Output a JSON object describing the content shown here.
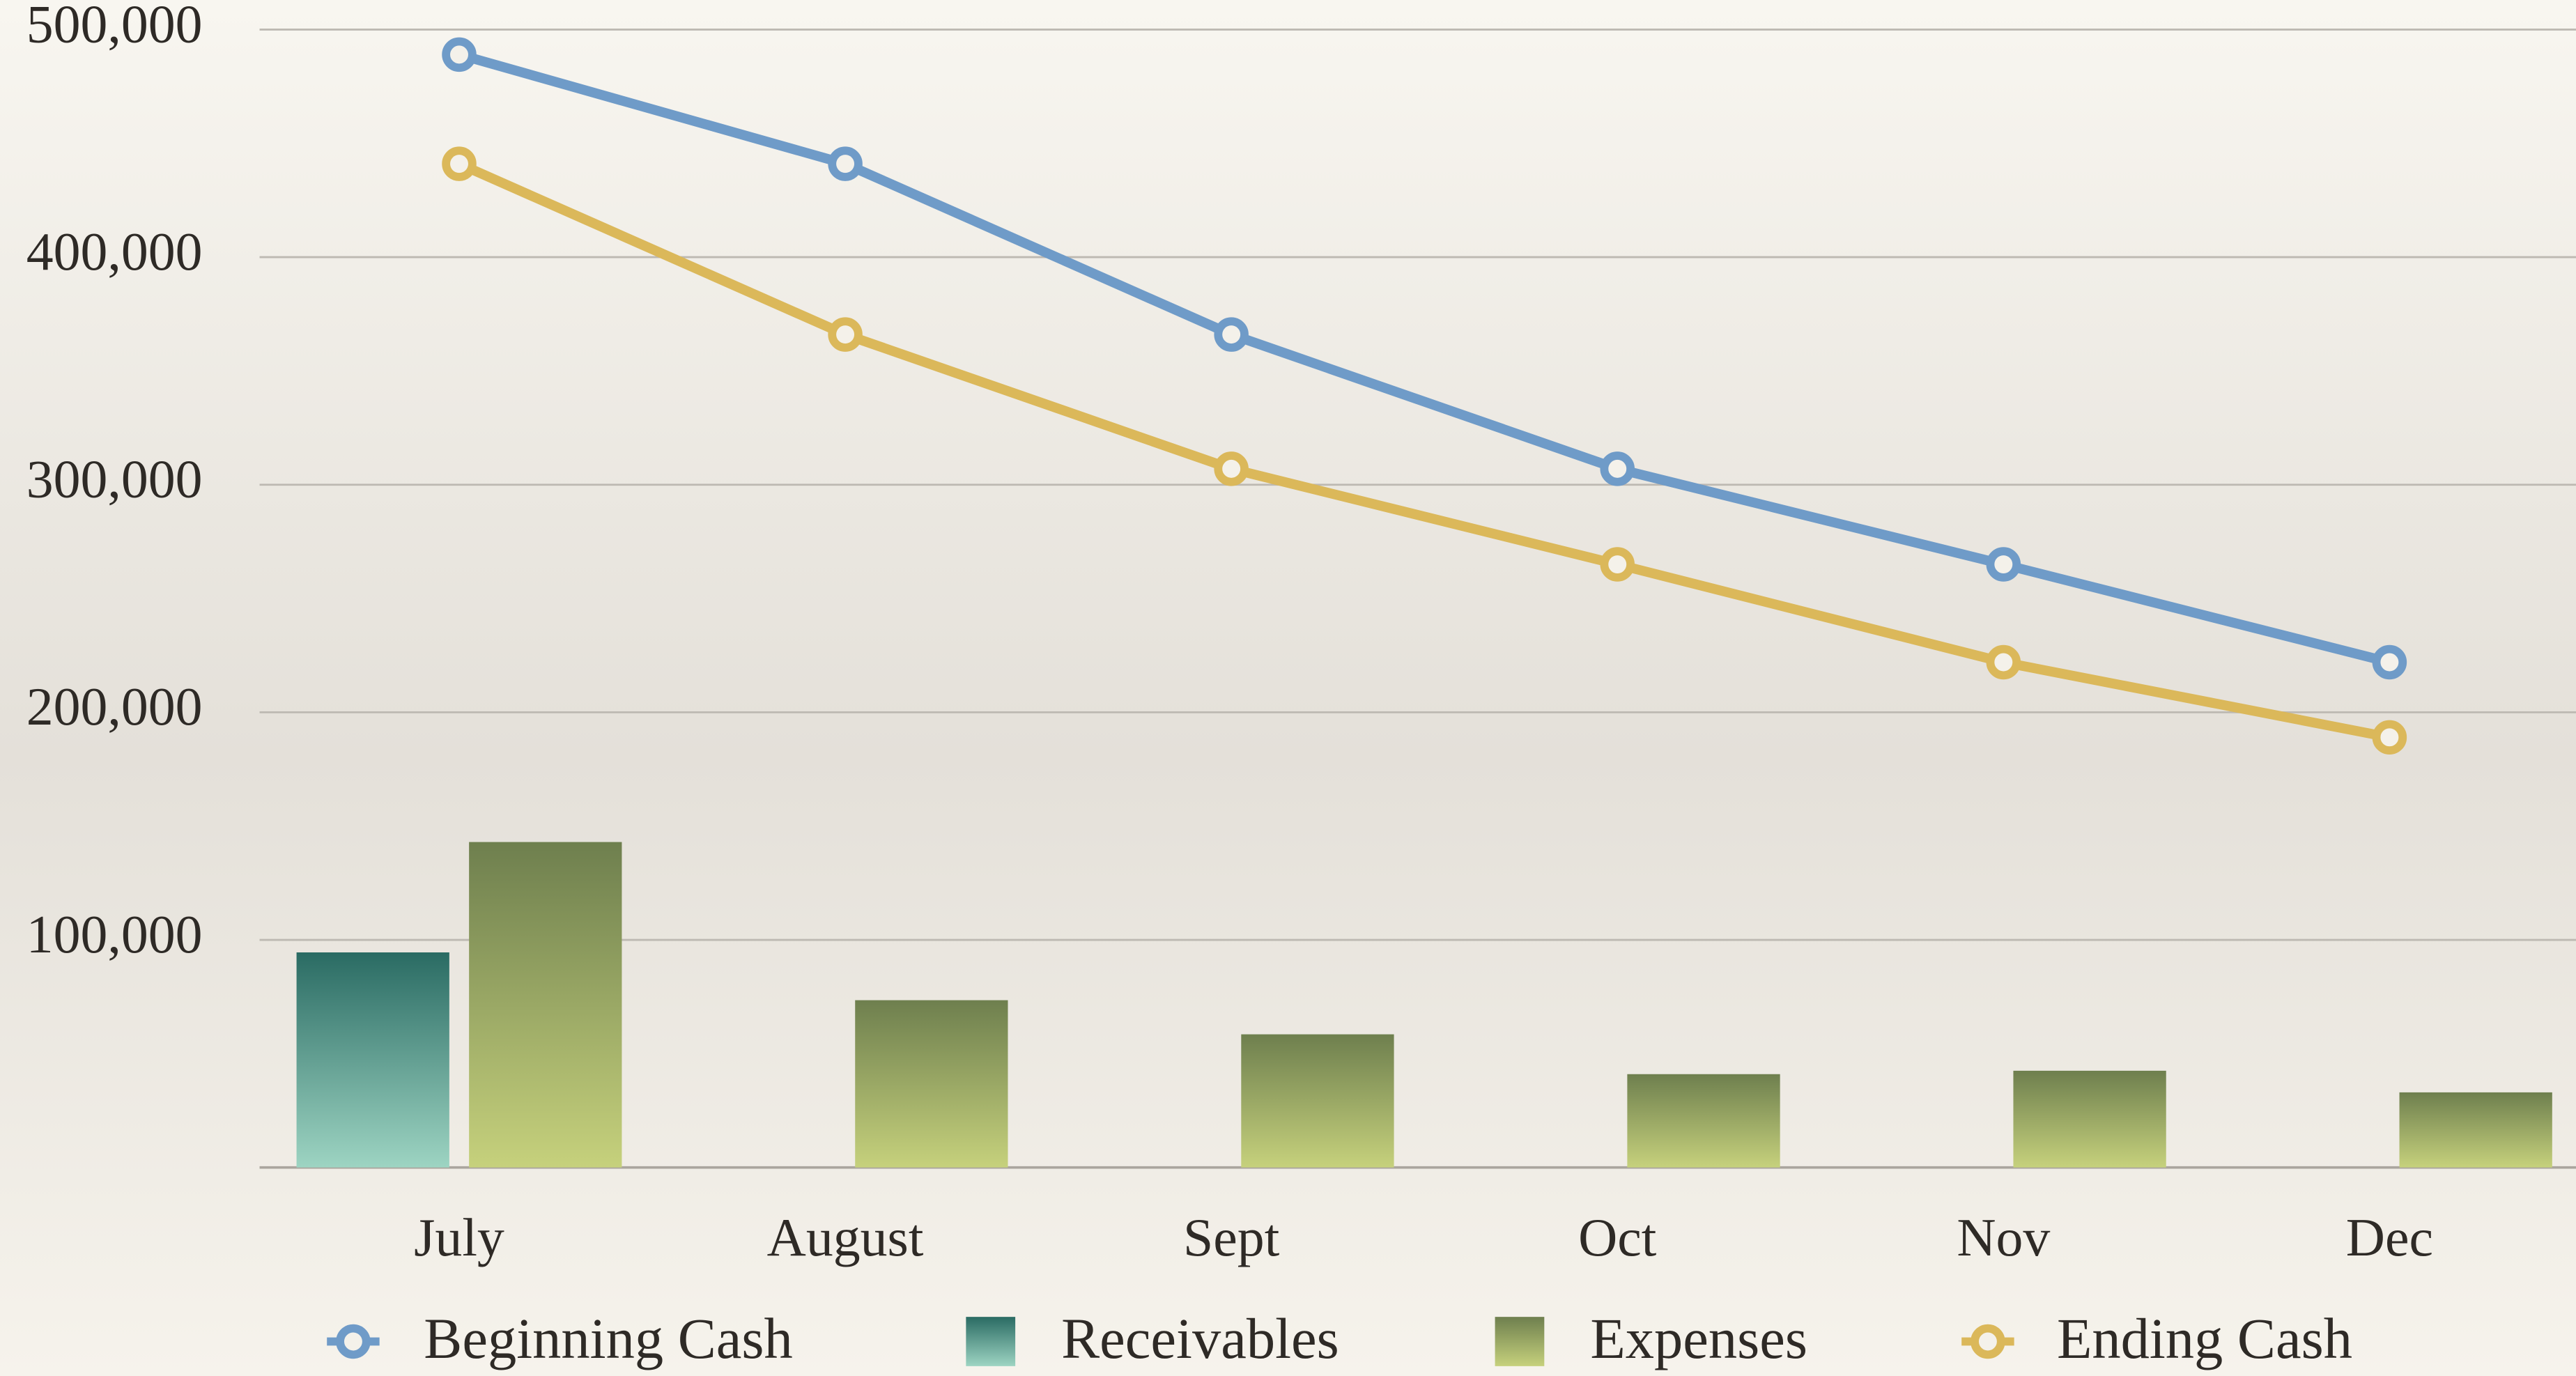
{
  "chart_data": {
    "type": "bar-line",
    "categories": [
      "July",
      "August",
      "Sept",
      "Oct",
      "Nov",
      "Dec"
    ],
    "series": [
      {
        "name": "Beginning Cash",
        "type": "line",
        "color": "#6f9bc8",
        "values": [
          489000,
          441000,
          366000,
          307000,
          265000,
          222000
        ]
      },
      {
        "name": "Receivables",
        "type": "bar",
        "color": "#2a6b63",
        "values": [
          94500,
          0,
          0,
          0,
          0,
          0
        ]
      },
      {
        "name": "Expenses",
        "type": "bar",
        "color": "#6e7f4e",
        "values": [
          143000,
          73500,
          58500,
          41000,
          42500,
          33000
        ]
      },
      {
        "name": "Ending Cash",
        "type": "line",
        "color": "#dbb85a",
        "values": [
          441000,
          366000,
          307000,
          265000,
          222000,
          189000
        ]
      }
    ],
    "ylim": [
      0,
      500000
    ],
    "yticks": [
      {
        "value": 100000,
        "label": "100,000"
      },
      {
        "value": 200000,
        "label": "200,000"
      },
      {
        "value": 300000,
        "label": "300,000"
      },
      {
        "value": 400000,
        "label": "400,000"
      },
      {
        "value": 500000,
        "label": "500,000"
      }
    ],
    "grid": true
  }
}
